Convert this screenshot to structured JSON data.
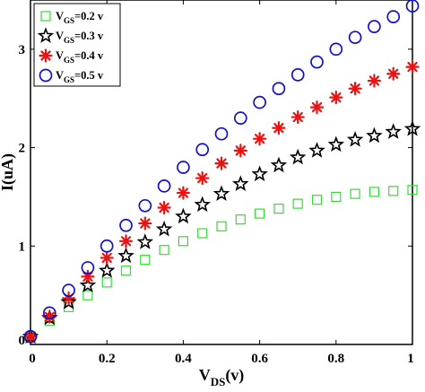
{
  "chart_data": {
    "type": "scatter",
    "title": "",
    "xlabel": {
      "main": "V",
      "sub": "DS",
      "suffix": "(v)"
    },
    "ylabel": "I(uA)",
    "xlim": [
      0,
      1
    ],
    "ylim": [
      0,
      3.5
    ],
    "xticks": [
      0,
      0.2,
      0.4,
      0.6,
      0.8,
      1
    ],
    "xtick_labels": [
      "0",
      "0.2",
      "0.4",
      "0.6",
      "0.8",
      "1"
    ],
    "yticks": [
      0,
      1,
      2,
      3
    ],
    "ytick_labels": [
      "0",
      "1",
      "2",
      "3"
    ],
    "grid": false,
    "legend_position": "top-left",
    "x": [
      0,
      0.05,
      0.1,
      0.15,
      0.2,
      0.25,
      0.3,
      0.35,
      0.4,
      0.45,
      0.5,
      0.55,
      0.6,
      0.65,
      0.7,
      0.75,
      0.8,
      0.85,
      0.9,
      0.95,
      1.0
    ],
    "series": [
      {
        "label": {
          "main": "V",
          "sub": "GS",
          "suffix": "=0.2 v"
        },
        "marker": "square",
        "color": "#33dd33",
        "values": [
          0.08,
          0.24,
          0.38,
          0.5,
          0.63,
          0.75,
          0.86,
          0.96,
          1.05,
          1.13,
          1.2,
          1.27,
          1.33,
          1.38,
          1.43,
          1.47,
          1.5,
          1.53,
          1.55,
          1.56,
          1.57
        ]
      },
      {
        "label": {
          "main": "V",
          "sub": "GS",
          "suffix": "=0.3 v"
        },
        "marker": "star",
        "color": "#000000",
        "values": [
          0.08,
          0.27,
          0.43,
          0.6,
          0.75,
          0.9,
          1.04,
          1.17,
          1.3,
          1.42,
          1.53,
          1.63,
          1.73,
          1.82,
          1.9,
          1.97,
          2.03,
          2.08,
          2.12,
          2.16,
          2.19
        ]
      },
      {
        "label": {
          "main": "V",
          "sub": "GS",
          "suffix": "=0.4 v"
        },
        "marker": "asterisk",
        "color": "#ee1111",
        "values": [
          0.08,
          0.28,
          0.47,
          0.69,
          0.88,
          1.05,
          1.23,
          1.39,
          1.54,
          1.69,
          1.84,
          1.97,
          2.09,
          2.2,
          2.31,
          2.41,
          2.51,
          2.6,
          2.68,
          2.75,
          2.82
        ]
      },
      {
        "label": {
          "main": "V",
          "sub": "GS",
          "suffix": "=0.5 v"
        },
        "marker": "circle",
        "color": "#1111cc",
        "values": [
          0.08,
          0.32,
          0.55,
          0.78,
          1.0,
          1.21,
          1.41,
          1.61,
          1.8,
          1.98,
          2.14,
          2.3,
          2.46,
          2.6,
          2.74,
          2.87,
          3.0,
          3.12,
          3.23,
          3.33,
          3.44
        ]
      }
    ]
  }
}
